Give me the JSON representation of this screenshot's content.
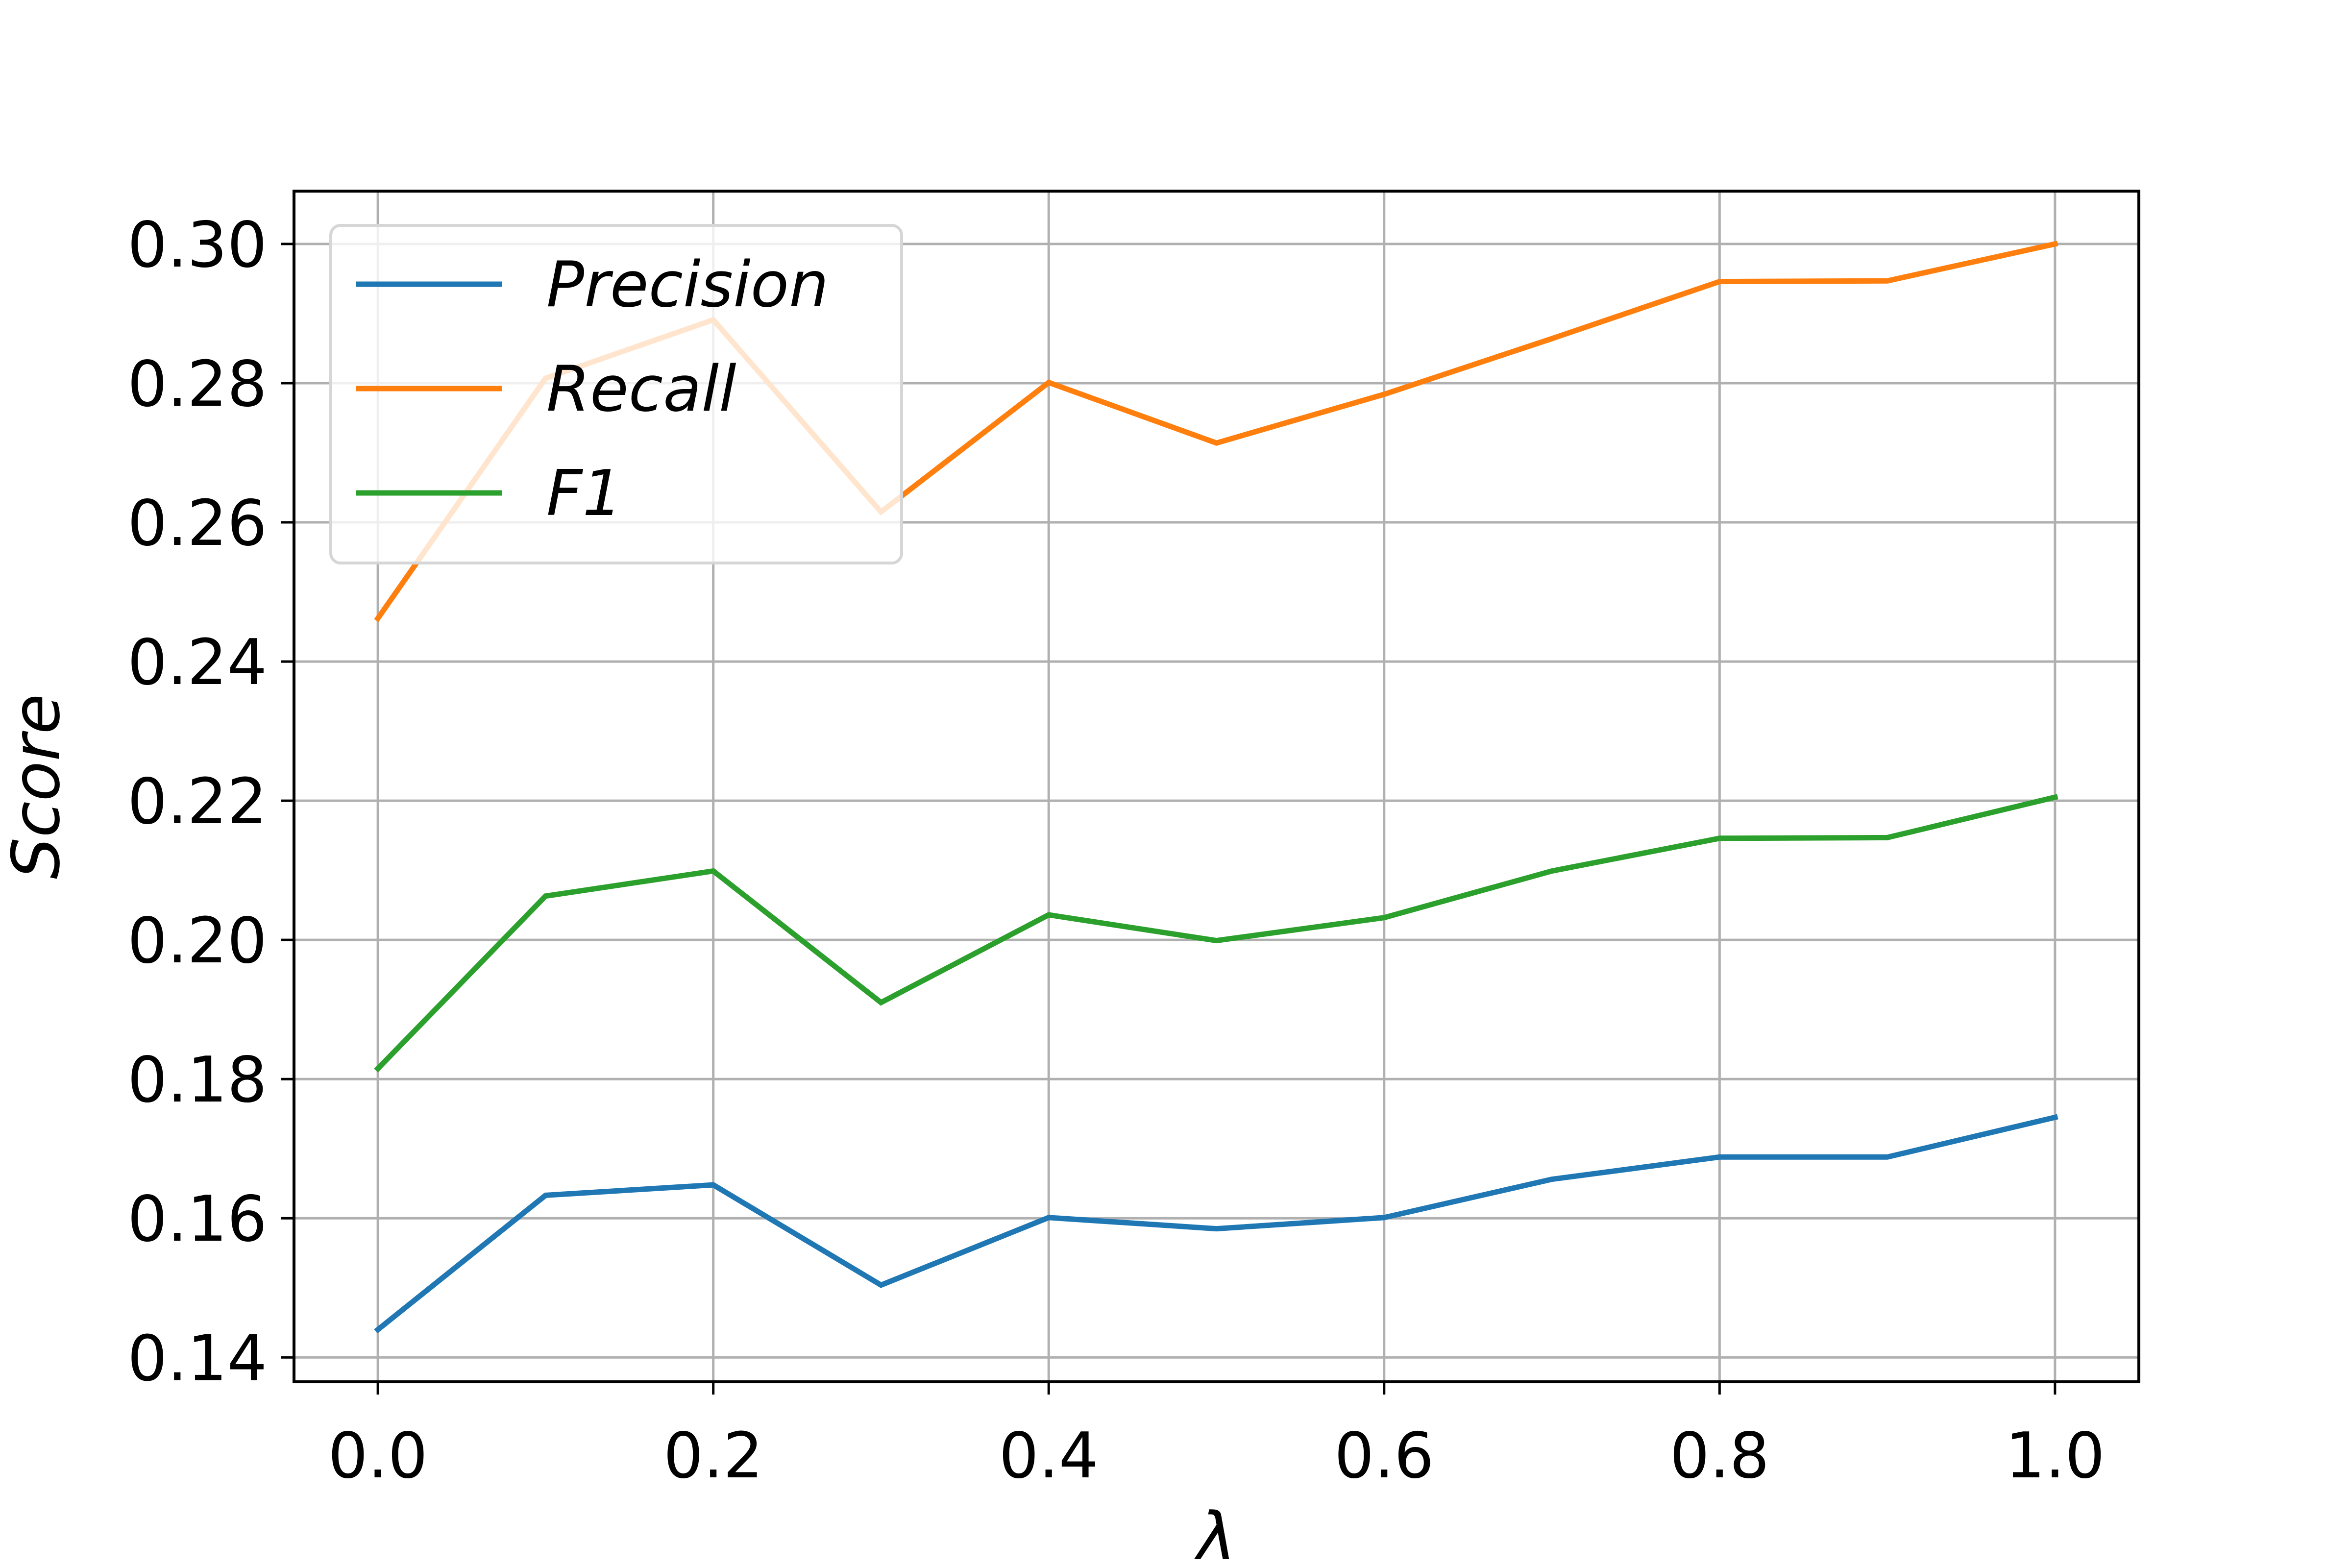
{
  "chart_data": {
    "type": "line",
    "title": "",
    "xlabel": "λ",
    "ylabel": "Score",
    "x": [
      0.0,
      0.1,
      0.2,
      0.3,
      0.4,
      0.5,
      0.6,
      0.7,
      0.8,
      0.9,
      1.0
    ],
    "xlim": [
      -0.05,
      1.05
    ],
    "ylim": [
      0.1365,
      0.3076
    ],
    "x_ticks": [
      0.0,
      0.2,
      0.4,
      0.6,
      0.8,
      1.0
    ],
    "x_tick_labels": [
      "0.0",
      "0.2",
      "0.4",
      "0.6",
      "0.8",
      "1.0"
    ],
    "y_ticks": [
      0.14,
      0.16,
      0.18,
      0.2,
      0.22,
      0.24,
      0.26,
      0.28,
      0.3
    ],
    "y_tick_labels": [
      "0.14",
      "0.16",
      "0.18",
      "0.20",
      "0.22",
      "0.24",
      "0.26",
      "0.28",
      "0.30"
    ],
    "grid": true,
    "legend_position": "top-left",
    "series": [
      {
        "name": "Precision",
        "color": "#1f77b4",
        "values": [
          0.144,
          0.1633,
          0.1648,
          0.1504,
          0.1601,
          0.1585,
          0.1601,
          0.1656,
          0.1688,
          0.1688,
          0.1745
        ]
      },
      {
        "name": "Recall",
        "color": "#ff7f0e",
        "values": [
          0.2462,
          0.2807,
          0.2891,
          0.2615,
          0.2801,
          0.2714,
          0.2784,
          0.2864,
          0.2946,
          0.2947,
          0.3
        ]
      },
      {
        "name": "F1",
        "color": "#2ca02c",
        "values": [
          0.1815,
          0.2063,
          0.2099,
          0.191,
          0.2036,
          0.1999,
          0.2032,
          0.2099,
          0.2146,
          0.2147,
          0.2205
        ]
      }
    ]
  }
}
